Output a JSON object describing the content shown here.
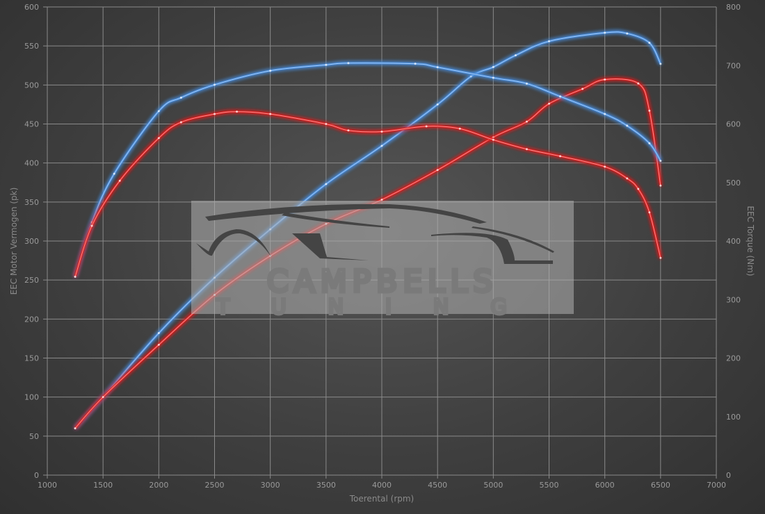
{
  "chart_data": {
    "type": "line",
    "title": "",
    "xlabel": "Toerental (rpm)",
    "ylabel": "EEC Motor Vermogen (pk)",
    "y2label": "EEC Torque (Nm)",
    "xlim": [
      1000,
      7000
    ],
    "ylim": [
      0,
      600
    ],
    "y2lim": [
      0,
      800
    ],
    "xticks": [
      1000,
      1500,
      2000,
      2500,
      3000,
      3500,
      4000,
      4500,
      5000,
      5500,
      6000,
      6500,
      7000
    ],
    "yticks": [
      0,
      50,
      100,
      150,
      200,
      250,
      300,
      350,
      400,
      450,
      500,
      550,
      600
    ],
    "y2ticks": [
      0,
      100,
      200,
      300,
      400,
      500,
      600,
      700,
      800
    ],
    "grid": true,
    "legend": "none",
    "colors": {
      "tuned": "#4a8fe0",
      "stock": "#e02020"
    },
    "series": [
      {
        "axis": "left",
        "color": "#4a8fe0",
        "x": [
          1250,
          1500,
          2000,
          2500,
          3000,
          3500,
          4000,
          4500,
          4800,
          5000,
          5200,
          5500,
          6000,
          6200,
          6400,
          6500
        ],
        "values": [
          60,
          100,
          182,
          253,
          315,
          373,
          422,
          475,
          511,
          523,
          538,
          556,
          567,
          566,
          554,
          527
        ]
      },
      {
        "axis": "left",
        "color": "#e02020",
        "x": [
          1250,
          1500,
          2000,
          2500,
          3000,
          3500,
          4000,
          4500,
          5000,
          5300,
          5500,
          5800,
          6000,
          6300,
          6400,
          6500
        ],
        "values": [
          60,
          100,
          167,
          231,
          281,
          322,
          353,
          391,
          433,
          453,
          476,
          495,
          507,
          502,
          467,
          371
        ]
      },
      {
        "axis": "right",
        "color": "#4a8fe0",
        "x": [
          1250,
          1400,
          1600,
          2000,
          2200,
          2500,
          3000,
          3500,
          3700,
          4300,
          4500,
          5000,
          5300,
          5600,
          6000,
          6200,
          6400,
          6500
        ],
        "values": [
          339,
          432,
          515,
          622,
          645,
          667,
          691,
          701,
          704,
          703,
          697,
          679,
          669,
          647,
          617,
          597,
          567,
          537
        ]
      },
      {
        "axis": "right",
        "color": "#e02020",
        "x": [
          1250,
          1400,
          1650,
          2000,
          2200,
          2500,
          2700,
          3000,
          3500,
          3700,
          4000,
          4400,
          4700,
          5000,
          5300,
          5600,
          6000,
          6200,
          6300,
          6400,
          6500
        ],
        "values": [
          339,
          426,
          503,
          576,
          603,
          617,
          621,
          617,
          600,
          589,
          587,
          596,
          592,
          573,
          557,
          545,
          527,
          507,
          489,
          449,
          371
        ]
      }
    ]
  },
  "watermark": {
    "line1": "CAMPBELLS",
    "line2": "TUNING"
  }
}
